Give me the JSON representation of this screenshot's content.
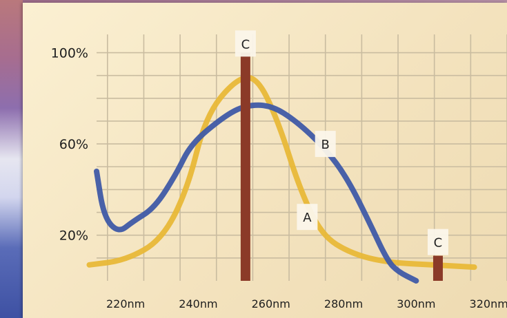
{
  "chart_data": {
    "type": "line",
    "title": "",
    "xlabel": "",
    "ylabel": "",
    "grid": true,
    "x_tick_labels": [
      "220nm",
      "240nm",
      "260nm",
      "280nm",
      "300nm",
      "320nm"
    ],
    "x_tick_values": [
      220,
      240,
      260,
      280,
      300,
      320
    ],
    "y_tick_labels": [
      "100%",
      "60%",
      "20%"
    ],
    "y_tick_values": [
      100,
      60,
      20
    ],
    "xlim": [
      212,
      325
    ],
    "ylim": [
      0,
      108
    ],
    "series": [
      {
        "name": "A",
        "color": "#e8b838",
        "points": [
          [
            210,
            7
          ],
          [
            220,
            9
          ],
          [
            230,
            18
          ],
          [
            237,
            40
          ],
          [
            242,
            72
          ],
          [
            250,
            88
          ],
          [
            256,
            90
          ],
          [
            262,
            70
          ],
          [
            268,
            40
          ],
          [
            274,
            20
          ],
          [
            282,
            12
          ],
          [
            292,
            8
          ],
          [
            305,
            7
          ],
          [
            316,
            6
          ]
        ]
      },
      {
        "name": "B",
        "color": "#3f5aa6",
        "points": [
          [
            212,
            48
          ],
          [
            214,
            28
          ],
          [
            218,
            21
          ],
          [
            222,
            26
          ],
          [
            228,
            32
          ],
          [
            234,
            47
          ],
          [
            238,
            60
          ],
          [
            247,
            72
          ],
          [
            253,
            77
          ],
          [
            260,
            77
          ],
          [
            267,
            70
          ],
          [
            275,
            58
          ],
          [
            281,
            45
          ],
          [
            287,
            26
          ],
          [
            292,
            9
          ],
          [
            295,
            4
          ],
          [
            300,
            0
          ]
        ]
      },
      {
        "name": "C",
        "type": "bar",
        "color": "#8b3a28",
        "bars": [
          {
            "x": 253,
            "value": 100
          },
          {
            "x": 306,
            "value": 11
          }
        ]
      }
    ],
    "annotations": [
      {
        "text": "C",
        "x": 253,
        "y": 104
      },
      {
        "text": "B",
        "x": 275,
        "y": 60
      },
      {
        "text": "A",
        "x": 270,
        "y": 28
      },
      {
        "text": "C",
        "x": 306,
        "y": 17
      }
    ]
  }
}
